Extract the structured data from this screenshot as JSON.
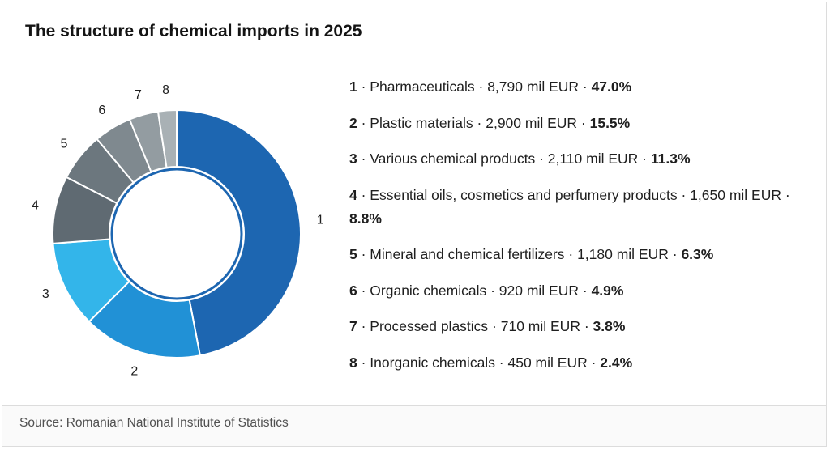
{
  "title": "The structure of chemical imports in 2025",
  "source": "Source: Romanian National Institute of Statistics",
  "separator": "·",
  "chart_data": {
    "type": "pie",
    "variant": "donut",
    "title": "The structure of chemical imports in 2025",
    "unit": "mil EUR",
    "labels": [
      "1",
      "2",
      "3",
      "4",
      "5",
      "6",
      "7",
      "8"
    ],
    "categories": [
      "Pharmaceuticals",
      "Plastic materials",
      "Various chemical products",
      "Essential oils, cosmetics and perfumery products",
      "Mineral and chemical fertilizers",
      "Organic chemicals",
      "Processed plastics",
      "Inorganic chemicals"
    ],
    "values": [
      8790,
      2900,
      2110,
      1650,
      1180,
      920,
      710,
      450
    ],
    "value_labels": [
      "8,790",
      "2,900",
      "2,110",
      "1,650",
      "1,180",
      "920",
      "710",
      "450"
    ],
    "percentages": [
      "47.0%",
      "15.5%",
      "11.3%",
      "8.8%",
      "6.3%",
      "4.9%",
      "3.8%",
      "2.4%"
    ],
    "colors": [
      "#1d66b1",
      "#2191d6",
      "#33b5ea",
      "#5f6a72",
      "#6c777e",
      "#7f898f",
      "#939ca1",
      "#a9b1b5"
    ],
    "legend_position": "right"
  }
}
